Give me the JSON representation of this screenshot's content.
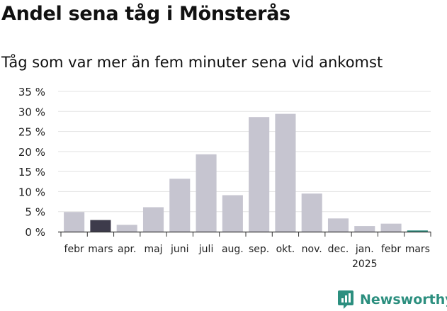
{
  "title": "Andel sena tåg i Mönsterås",
  "subtitle": "Tåg som var mer än fem minuter sena vid ankomst",
  "brand": "Newsworthy",
  "colors": {
    "bar": "#c6c5d0",
    "highlight": "#3d3b4b",
    "latest": "#2c8f7f",
    "grid": "#e3e3e3",
    "axis": "#333333"
  },
  "chart_data": {
    "type": "bar",
    "categories": [
      "febr",
      "mars",
      "apr.",
      "maj",
      "juni",
      "juli",
      "aug.",
      "sep.",
      "okt.",
      "nov.",
      "dec.",
      "jan.",
      "febr",
      "mars"
    ],
    "year_label": "2025",
    "values": [
      4.9,
      2.9,
      1.7,
      6.1,
      13.2,
      19.3,
      9.1,
      28.6,
      29.4,
      9.5,
      3.3,
      1.4,
      2.0,
      0.3
    ],
    "bar_styles": [
      "bar",
      "highlight",
      "bar",
      "bar",
      "bar",
      "bar",
      "bar",
      "bar",
      "bar",
      "bar",
      "bar",
      "bar",
      "bar",
      "latest"
    ],
    "yticks": [
      "0 %",
      "5 %",
      "10 %",
      "15 %",
      "20 %",
      "25 %",
      "30 %",
      "35 %"
    ],
    "ylim": [
      0,
      35
    ],
    "grid": true,
    "xlabel": "",
    "ylabel": ""
  }
}
